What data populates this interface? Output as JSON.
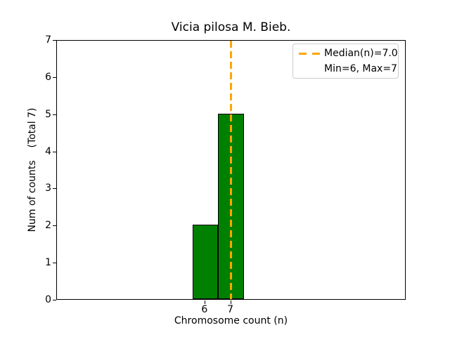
{
  "chart_data": {
    "type": "bar",
    "subtype": "histogram",
    "title": "Vicia pilosa M. Bieb.",
    "xlabel": "Chromosome count (n)",
    "ylabel": "Num of counts    (Total 7)",
    "categories": [
      6,
      7
    ],
    "values": [
      2,
      5
    ],
    "bar_width": 1,
    "bar_color": "#008000",
    "bar_edge_color": "#000000",
    "xlim": [
      0.25,
      13.8
    ],
    "ylim": [
      0,
      7
    ],
    "xticks": [
      6,
      7
    ],
    "yticks": [
      0,
      1,
      2,
      3,
      4,
      5,
      6,
      7
    ],
    "grid": false,
    "median_line": {
      "x": 7.0,
      "color": "#FFA500",
      "style": "dashed"
    },
    "legend": {
      "position": "upper right",
      "entries": [
        {
          "label": "Median(n)=7.0",
          "swatch": "orange-dashed-line"
        },
        {
          "label": "Min=6, Max=7",
          "swatch": "none"
        }
      ]
    }
  }
}
